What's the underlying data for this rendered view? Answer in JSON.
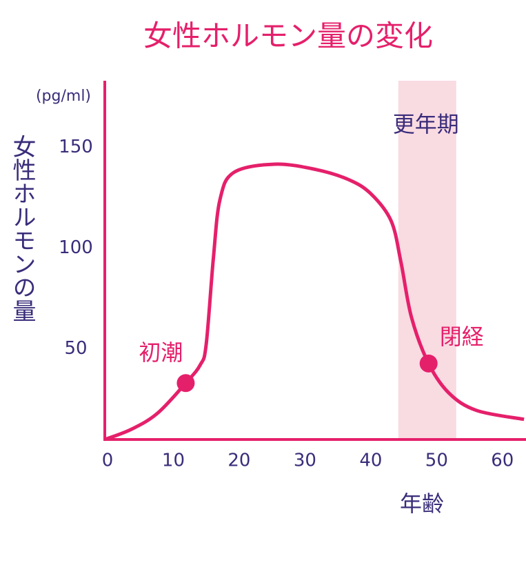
{
  "chart_data": {
    "type": "line",
    "title": "女性ホルモン量の変化",
    "y_unit": "(pg/ml)",
    "ylabel": "女性ホルモンの量",
    "xlabel": "年齢",
    "x": [
      0,
      4,
      8,
      12.3,
      14.5,
      15.4,
      16.5,
      17.5,
      19.6,
      25.8,
      32,
      37,
      40.4,
      43.5,
      45,
      46.6,
      49.2,
      52.3,
      56.5,
      63.7
    ],
    "series": [
      {
        "color": "#e5206b",
        "values": [
          5,
          10,
          18,
          33,
          42,
          52,
          95,
          124,
          137.5,
          141.6,
          139,
          134,
          127,
          113.5,
          93,
          65.6,
          42.7,
          28,
          19.4,
          15
        ]
      }
    ],
    "markers": [
      {
        "label": "初潮",
        "x": 12.3,
        "y": 33
      },
      {
        "label": "閉経",
        "x": 49.2,
        "y": 42.7
      }
    ],
    "band": {
      "label": "更年期",
      "range": [
        44.6,
        53.4
      ],
      "color": "#f9dbe2"
    },
    "xlim": [
      0,
      64
    ],
    "ylim": [
      5,
      183
    ],
    "xticks": [
      0,
      10,
      20,
      30,
      40,
      50,
      60
    ],
    "yticks": [
      50,
      100,
      150
    ],
    "grid": false
  }
}
